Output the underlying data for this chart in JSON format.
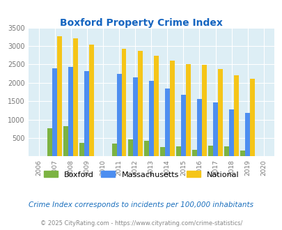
{
  "title": "Boxford Property Crime Index",
  "years": [
    2006,
    2007,
    2008,
    2009,
    2010,
    2011,
    2012,
    2013,
    2014,
    2015,
    2016,
    2017,
    2018,
    2019,
    2020
  ],
  "boxford": [
    0,
    770,
    820,
    370,
    0,
    340,
    470,
    420,
    250,
    265,
    185,
    290,
    265,
    165,
    0
  ],
  "massachusetts": [
    0,
    2400,
    2430,
    2320,
    0,
    2250,
    2150,
    2050,
    1850,
    1680,
    1560,
    1460,
    1270,
    1175,
    0
  ],
  "national": [
    0,
    3260,
    3210,
    3040,
    0,
    2920,
    2860,
    2740,
    2600,
    2500,
    2480,
    2380,
    2210,
    2110,
    0
  ],
  "boxford_color": "#7cb342",
  "massachusetts_color": "#4d8ef0",
  "national_color": "#f5c518",
  "bg_color": "#ddeef5",
  "ylabel_max": 3500,
  "yticks": [
    0,
    500,
    1000,
    1500,
    2000,
    2500,
    3000,
    3500
  ],
  "note": "Crime Index corresponds to incidents per 100,000 inhabitants",
  "copyright": "© 2025 CityRating.com - https://www.cityrating.com/crime-statistics/"
}
